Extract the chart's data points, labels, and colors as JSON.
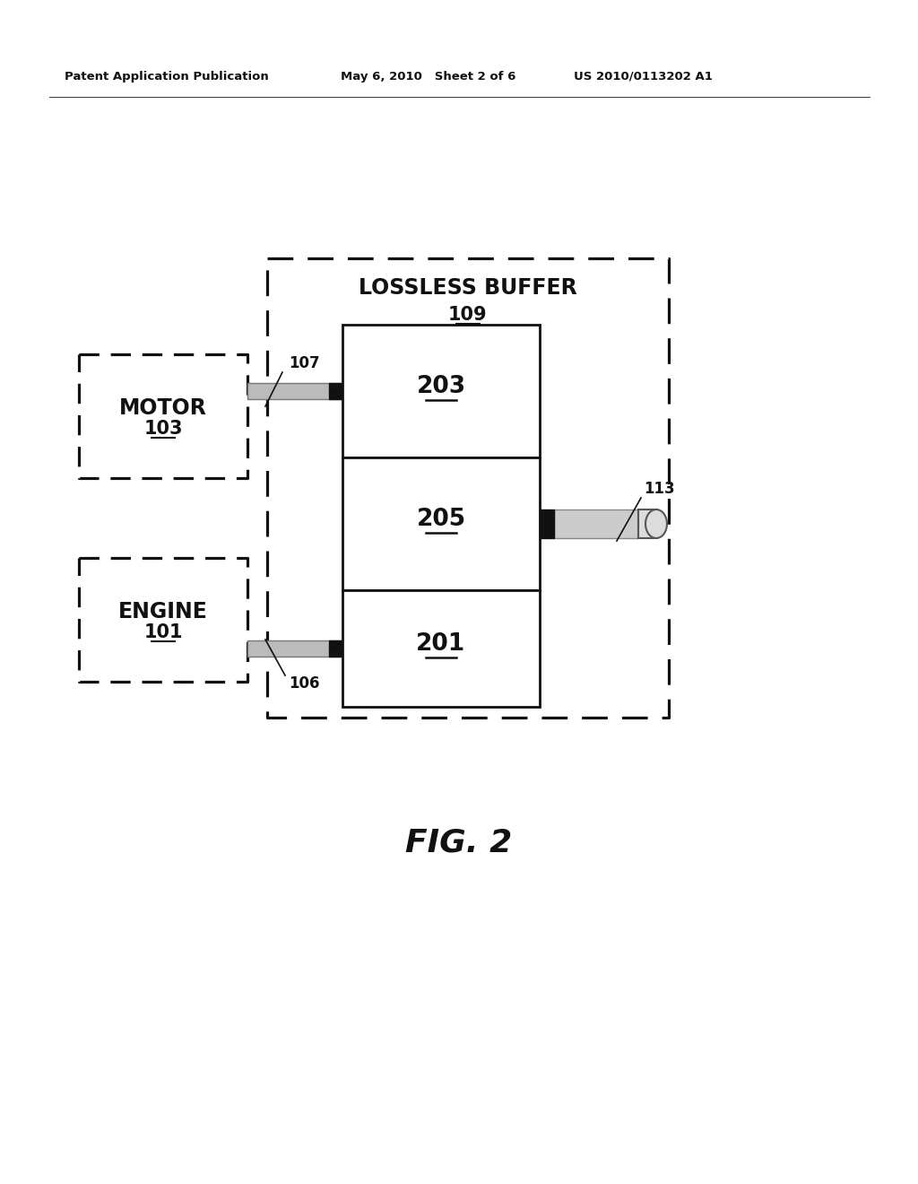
{
  "bg_color": "#ffffff",
  "header_left": "Patent Application Publication",
  "header_mid": "May 6, 2010   Sheet 2 of 6",
  "header_right": "US 2010/0113202 A1",
  "fig_label": "FIG. 2",
  "motor_label": "MOTOR",
  "motor_num": "103",
  "engine_label": "ENGINE",
  "engine_num": "101",
  "lossless_label": "LOSSLESS BUFFER",
  "lossless_num": "109",
  "box203_num": "203",
  "box205_num": "205",
  "box201_num": "201",
  "ref107": "107",
  "ref106": "106",
  "ref113": "113"
}
